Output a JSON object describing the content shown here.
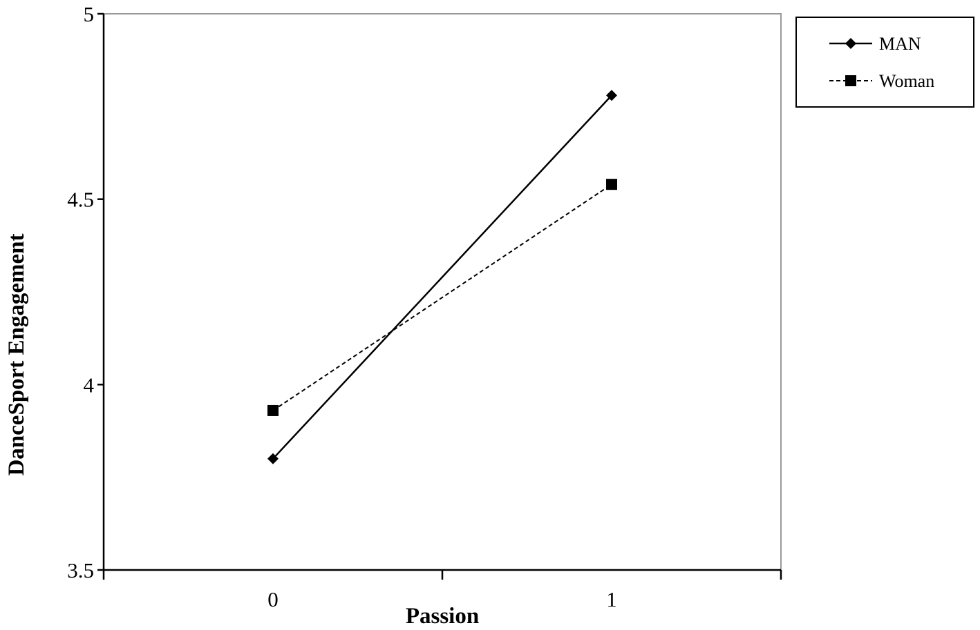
{
  "chart_data": {
    "type": "line",
    "title": "",
    "xlabel": "Passion",
    "ylabel": "DanceSport Engagement",
    "categories": [
      "0",
      "1"
    ],
    "ylim": [
      3.5,
      5
    ],
    "yticks": [
      "3.5",
      "4",
      "4.5",
      "5"
    ],
    "grid": false,
    "legend_position": "right-top",
    "series": [
      {
        "name": "MAN",
        "values": [
          3.8,
          4.78
        ],
        "marker": "diamond",
        "line": "solid",
        "color": "#000000"
      },
      {
        "name": "Woman",
        "values": [
          3.93,
          4.54
        ],
        "marker": "square",
        "line": "dashed",
        "color": "#000000"
      }
    ]
  }
}
